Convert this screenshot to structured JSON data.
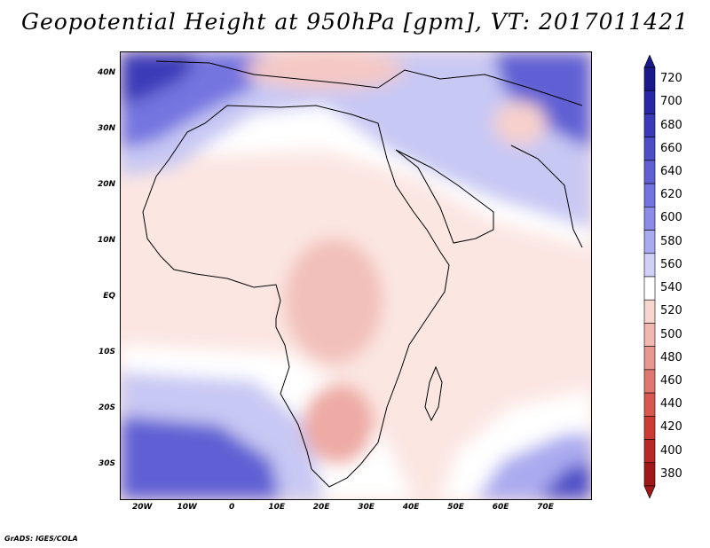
{
  "title": "Geopotential Height at 950hPa [gpm], VT: 2017011421",
  "credit": "GrADS: IGES/COLA",
  "map": {
    "lon_range": [
      -25,
      80
    ],
    "lat_range": [
      -36,
      44
    ],
    "lat_ticks": [
      {
        "label": "40N",
        "lat": 40
      },
      {
        "label": "30N",
        "lat": 30
      },
      {
        "label": "20N",
        "lat": 20
      },
      {
        "label": "10N",
        "lat": 10
      },
      {
        "label": "EQ",
        "lat": 0
      },
      {
        "label": "10S",
        "lat": -10
      },
      {
        "label": "20S",
        "lat": -20
      },
      {
        "label": "30S",
        "lat": -30
      }
    ],
    "lon_ticks": [
      {
        "label": "20W",
        "lon": -20
      },
      {
        "label": "10W",
        "lon": -10
      },
      {
        "label": "0",
        "lon": 0
      },
      {
        "label": "10E",
        "lon": 10
      },
      {
        "label": "20E",
        "lon": 20
      },
      {
        "label": "30E",
        "lon": 30
      },
      {
        "label": "40E",
        "lon": 40
      },
      {
        "label": "50E",
        "lon": 50
      },
      {
        "label": "60E",
        "lon": 60
      },
      {
        "label": "70E",
        "lon": 70
      }
    ]
  },
  "colorbar": {
    "levels": [
      "720",
      "700",
      "680",
      "660",
      "640",
      "620",
      "600",
      "580",
      "560",
      "540",
      "520",
      "500",
      "480",
      "460",
      "440",
      "420",
      "400",
      "380"
    ],
    "colors": [
      "#1a1a8c",
      "#2828a6",
      "#3a3ab8",
      "#4d4dc8",
      "#6060d4",
      "#7474e0",
      "#8c8ce8",
      "#aaaaf0",
      "#d0d0f8",
      "#ffffff",
      "#f8d6d0",
      "#f0b8b0",
      "#e89890",
      "#e07870",
      "#d85850",
      "#cc3c36",
      "#b82828",
      "#a01818"
    ]
  }
}
